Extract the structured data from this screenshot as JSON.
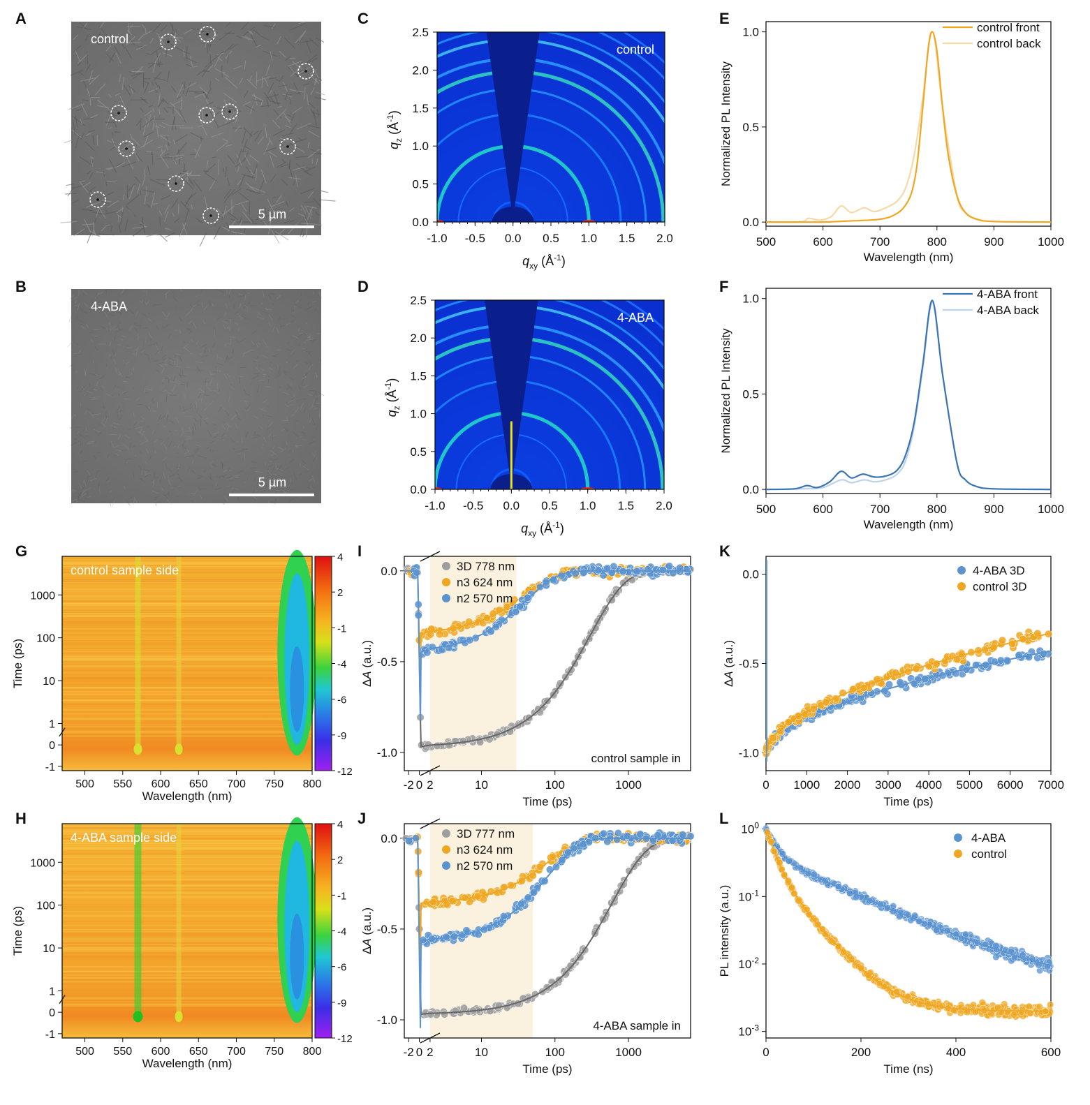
{
  "panel_labels": [
    "A",
    "B",
    "C",
    "D",
    "E",
    "F",
    "G",
    "H",
    "I",
    "J",
    "K",
    "L"
  ],
  "colors": {
    "gold": "#EFA722",
    "gold_light": "#F5D9A7",
    "blue": "#3B74B4",
    "blue_light": "#BFD3E6",
    "gray": "#9E9E9E",
    "gray_dark": "#666666",
    "band": "#FAF2DF"
  },
  "sem": [
    {
      "label": "control",
      "scale": "5 µm"
    },
    {
      "label": "4-ABA",
      "scale": "5 µm"
    }
  ],
  "giwaxs": [
    {
      "label": "control"
    },
    {
      "label": "4-ABA"
    }
  ],
  "giwaxs_axes": {
    "xlabel_main": "q",
    "xlabel_sub": "xy",
    "xlabel_unit": " (Å",
    "xlabel_sup": "-1",
    "xlabel_close": ")",
    "ylabel_main": "q",
    "ylabel_sub": "z",
    "xticks": [
      "-1.0",
      "-0.5",
      "0.0",
      "0.5",
      "1.0",
      "1.5",
      "2.0"
    ],
    "yticks": [
      "0.0",
      "0.5",
      "1.0",
      "1.5",
      "2.0",
      "2.5"
    ]
  },
  "tas_maps": [
    {
      "label": "control sample side"
    },
    {
      "label": "4-ABA sample side"
    }
  ],
  "tas_map_axes": {
    "xlabel": "Wavelength (nm)",
    "ylabel": "Time (ps)",
    "xticks": [
      "500",
      "550",
      "600",
      "650",
      "700",
      "750",
      "800"
    ],
    "yticks": [
      "1000",
      "100",
      "10",
      "1",
      "0",
      "-1"
    ],
    "colorbar_ticks": [
      "4",
      "2",
      "-1",
      "-4",
      "-6",
      "-9",
      "-12"
    ]
  },
  "chart_data": [
    {
      "id": "E",
      "type": "line",
      "xlabel": "Wavelength (nm)",
      "ylabel": "Normalized PL Intensity",
      "xlim": [
        500,
        1000
      ],
      "ylim": [
        0,
        1.0
      ],
      "xticks": [
        "500",
        "600",
        "700",
        "800",
        "900",
        "1000"
      ],
      "yticks": [
        "0.0",
        "0.5",
        "1.0"
      ],
      "series": [
        {
          "name": "control front",
          "color": "#EFA722",
          "x": [
            500,
            560,
            600,
            640,
            680,
            700,
            720,
            740,
            755,
            765,
            775,
            785,
            792,
            800,
            810,
            820,
            835,
            850,
            870,
            900,
            1000
          ],
          "y": [
            0,
            0,
            0,
            0.005,
            0.01,
            0.015,
            0.03,
            0.07,
            0.15,
            0.3,
            0.6,
            0.92,
            1.0,
            0.9,
            0.6,
            0.35,
            0.14,
            0.05,
            0.015,
            0.003,
            0
          ]
        },
        {
          "name": "control back",
          "color": "#F5D9A7",
          "x": [
            500,
            560,
            575,
            595,
            615,
            632,
            650,
            672,
            690,
            710,
            730,
            745,
            760,
            775,
            792,
            810,
            835,
            850,
            870,
            900,
            1000
          ],
          "y": [
            0,
            0,
            0.02,
            0.01,
            0.03,
            0.085,
            0.05,
            0.075,
            0.055,
            0.075,
            0.11,
            0.18,
            0.35,
            0.65,
            1.0,
            0.6,
            0.14,
            0.05,
            0.015,
            0.003,
            0
          ]
        }
      ]
    },
    {
      "id": "F",
      "type": "line",
      "xlabel": "Wavelength (nm)",
      "ylabel": "Normalized PL Intensity",
      "xlim": [
        500,
        1000
      ],
      "ylim": [
        0,
        1.0
      ],
      "xticks": [
        "500",
        "600",
        "700",
        "800",
        "900",
        "1000"
      ],
      "yticks": [
        "0.0",
        "0.5",
        "1.0"
      ],
      "series": [
        {
          "name": "4-ABA front",
          "color": "#3B74B4",
          "x": [
            500,
            550,
            572,
            590,
            612,
            632,
            650,
            670,
            690,
            710,
            730,
            745,
            760,
            775,
            792,
            810,
            835,
            850,
            870,
            900,
            1000
          ],
          "y": [
            0,
            0.003,
            0.02,
            0.01,
            0.04,
            0.095,
            0.06,
            0.08,
            0.065,
            0.07,
            0.1,
            0.18,
            0.35,
            0.65,
            0.99,
            0.6,
            0.14,
            0.05,
            0.015,
            0.003,
            0
          ]
        },
        {
          "name": "4-ABA back",
          "color": "#BFD3E6",
          "x": [
            500,
            560,
            600,
            632,
            650,
            672,
            690,
            710,
            730,
            745,
            760,
            775,
            792,
            810,
            835,
            850,
            870,
            900,
            1000
          ],
          "y": [
            0,
            0.003,
            0.01,
            0.05,
            0.035,
            0.05,
            0.04,
            0.05,
            0.08,
            0.15,
            0.33,
            0.63,
            0.98,
            0.6,
            0.14,
            0.05,
            0.015,
            0.003,
            0
          ]
        }
      ]
    },
    {
      "id": "I",
      "type": "scatter",
      "xlabel": "Time (ps)",
      "ylabel": "ΔA (a.u.)",
      "xticks": [
        "-2",
        "0",
        "2",
        "10",
        "100",
        "1000"
      ],
      "yticks": [
        "0.0",
        "-0.5",
        "-1.0"
      ],
      "band": [
        2,
        30
      ],
      "annotation": "control sample in",
      "series": [
        {
          "name": "3D 778 nm",
          "color": "#9E9E9E",
          "fit": {
            "rise": -0.97,
            "tau": 300,
            "beta": 0.9,
            "late": 0.0
          }
        },
        {
          "name": "n3 624 nm",
          "color": "#EFA722",
          "fit": {
            "rise": -0.35,
            "tau": 40,
            "beta": 1.0
          }
        },
        {
          "name": "n2 570 nm",
          "color": "#5B93CF",
          "fit": {
            "rise": -0.45,
            "tau": 40,
            "beta": 1.0
          }
        }
      ]
    },
    {
      "id": "J",
      "type": "scatter",
      "xlabel": "Time (ps)",
      "ylabel": "ΔA (a.u.)",
      "xticks": [
        "-2",
        "0",
        "2",
        "10",
        "100",
        "1000"
      ],
      "yticks": [
        "0.0",
        "-0.5",
        "-1.0"
      ],
      "band": [
        2,
        50
      ],
      "annotation": "4-ABA sample in",
      "series": [
        {
          "name": "3D 777 nm",
          "color": "#9E9E9E",
          "fit": {
            "rise": -0.97,
            "tau": 600,
            "beta": 0.9
          }
        },
        {
          "name": "n3 624 nm",
          "color": "#EFA722",
          "fit": {
            "rise": -0.36,
            "tau": 80,
            "beta": 1.0
          }
        },
        {
          "name": "n2 570 nm",
          "color": "#5B93CF",
          "fit": {
            "rise": -0.57,
            "tau": 80,
            "beta": 1.0
          }
        }
      ]
    },
    {
      "id": "K",
      "type": "scatter",
      "xlabel": "Time (ps)",
      "ylabel": "ΔA (a.u.)",
      "xlim": [
        0,
        7000
      ],
      "ylim": [
        -1.1,
        0.1
      ],
      "xticks": [
        "0",
        "1000",
        "2000",
        "3000",
        "4000",
        "5000",
        "6000",
        "7000"
      ],
      "yticks": [
        "0.0",
        "-0.5",
        "-1.0"
      ],
      "series": [
        {
          "name": "4-ABA  3D",
          "color": "#5B93CF",
          "fit_end": -0.43
        },
        {
          "name": "control  3D",
          "color": "#EFA722",
          "fit_end": -0.33
        }
      ]
    },
    {
      "id": "L",
      "type": "scatter",
      "xlabel": "Time (ns)",
      "ylabel": "PL intensity (a.u.)",
      "xlim": [
        0,
        600
      ],
      "yscale": "log",
      "ylim": [
        0.0008,
        1.2
      ],
      "xticks": [
        "0",
        "200",
        "400",
        "600"
      ],
      "yticks": [
        {
          "b": "10",
          "e": "0"
        },
        {
          "b": "10",
          "e": "-1"
        },
        {
          "b": "10",
          "e": "-2"
        },
        {
          "b": "10",
          "e": "-3"
        }
      ],
      "series": [
        {
          "name": "4-ABA",
          "color": "#5B93CF",
          "fit": {
            "a1": 0.6,
            "t1": 20,
            "a2": 0.4,
            "t2": 140,
            "floor": 0.004
          }
        },
        {
          "name": "control",
          "color": "#EFA722",
          "fit": {
            "a1": 0.75,
            "t1": 18,
            "a2": 0.25,
            "t2": 55,
            "floor": 0.002
          }
        }
      ]
    }
  ]
}
